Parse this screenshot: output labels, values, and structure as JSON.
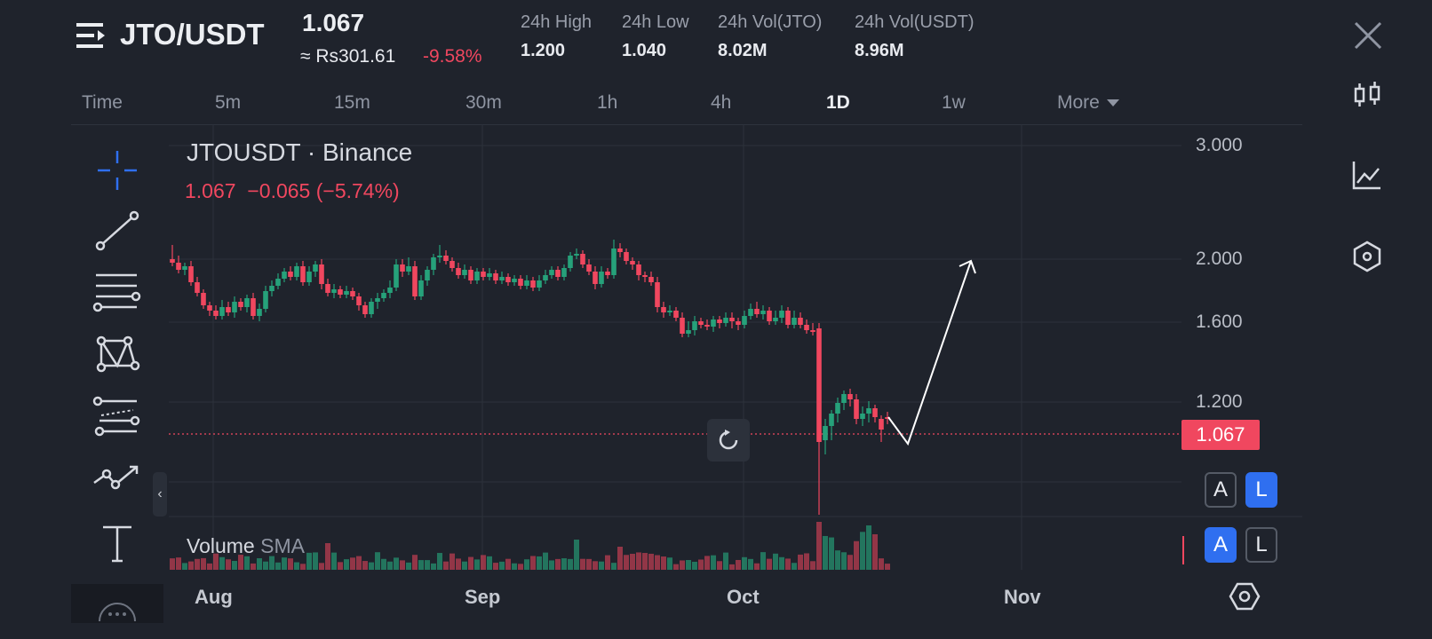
{
  "header": {
    "pair": "JTO/USDT",
    "price": "1.067",
    "local_price": "≈ Rs301.61",
    "change_pct": "-9.58%",
    "stats": [
      {
        "label": "24h High",
        "value": "1.200"
      },
      {
        "label": "24h Low",
        "value": "1.040"
      },
      {
        "label": "24h Vol(JTO)",
        "value": "8.02M"
      },
      {
        "label": "24h Vol(USDT)",
        "value": "8.96M"
      }
    ]
  },
  "timeframes": [
    "Time",
    "5m",
    "15m",
    "30m",
    "1h",
    "4h",
    "1D",
    "1w",
    "More"
  ],
  "active_timeframe": "1D",
  "tools": [
    "crosshair-icon",
    "trendline-icon",
    "horizontal-lines-icon",
    "pattern-icon",
    "fib-channel-icon",
    "path-icon",
    "text-icon"
  ],
  "legend": {
    "symbol": "JTOUSDT · Binance",
    "last": "1.067",
    "change": "−0.065 (−5.74%)"
  },
  "volume_label": "Volume",
  "volume_sma": "SMA",
  "last_price_tag": "1.067",
  "scale_buttons": {
    "auto": "A",
    "log": "L"
  },
  "colors": {
    "up": "#26a17a",
    "down": "#f0475f",
    "accent": "#2f6ff0",
    "background": "#1f232c"
  },
  "chart_data": {
    "type": "candlestick",
    "y_ticks": [
      "3.000",
      "2.000",
      "1.600",
      "1.200"
    ],
    "x_ticks": [
      "Aug",
      "Sep",
      "Oct",
      "Nov"
    ],
    "last_price": 1.067,
    "log_scale": true,
    "grid": true
  }
}
